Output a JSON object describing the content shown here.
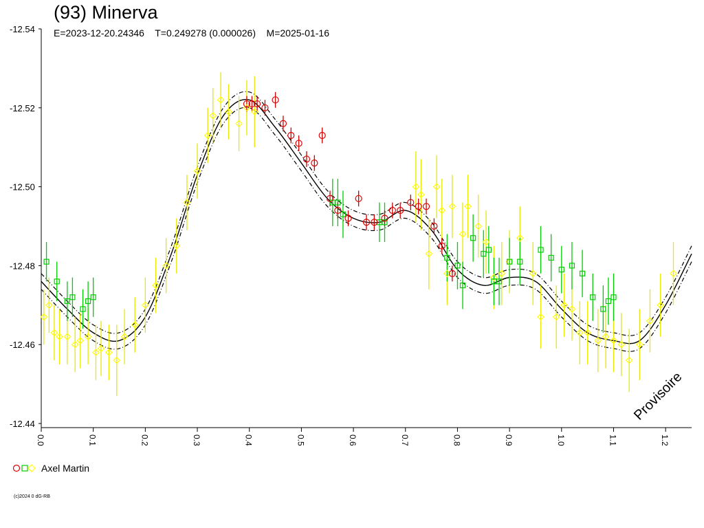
{
  "title": "(93) Minerva",
  "subtitle": "E=2023-12-20.24346    T=0.249278 (0.000026)    M=2025-01-16",
  "watermark": "Provisoire",
  "copyright": "(c)2024 0 dG-RB",
  "legend": {
    "label": "Axel Martin"
  },
  "chart_data": {
    "type": "scatter",
    "xlim": [
      0,
      1.25
    ],
    "ylim": [
      -12.54,
      -12.44
    ],
    "y_inverted": true,
    "x_ticks": [
      "0.0",
      "0.1",
      "0.2",
      "0.3",
      "0.4",
      "0.5",
      "0.6",
      "0.7",
      "0.8",
      "0.9",
      "1.0",
      "1.1",
      "1.2"
    ],
    "y_ticks": [
      "-12.54",
      "-12.52",
      "-12.50",
      "-12.48",
      "-12.46",
      "-12.44"
    ],
    "fit_curve": {
      "x": [
        0,
        0.05,
        0.1,
        0.15,
        0.2,
        0.25,
        0.3,
        0.35,
        0.4,
        0.45,
        0.5,
        0.55,
        0.6,
        0.65,
        0.7,
        0.75,
        0.8,
        0.85,
        0.9,
        0.95,
        1.0,
        1.05,
        1.1,
        1.15,
        1.2,
        1.25
      ],
      "y": [
        -12.476,
        -12.469,
        -12.463,
        -12.461,
        -12.467,
        -12.483,
        -12.503,
        -12.518,
        -12.522,
        -12.515,
        -12.506,
        -12.497,
        -12.492,
        -12.491,
        -12.494,
        -12.489,
        -12.479,
        -12.475,
        -12.477,
        -12.476,
        -12.469,
        -12.463,
        -12.461,
        -12.461,
        -12.47,
        -12.483
      ],
      "band": 0.002,
      "color": "#000000"
    },
    "series": [
      {
        "marker": "circle",
        "color": "#e00000",
        "errbar_color": "#cc0000",
        "x": [
          0.395,
          0.405,
          0.415,
          0.43,
          0.45,
          0.465,
          0.48,
          0.495,
          0.51,
          0.525,
          0.54,
          0.555,
          0.57,
          0.59,
          0.61,
          0.625,
          0.64,
          0.66,
          0.675,
          0.69,
          0.71,
          0.725,
          0.74,
          0.755,
          0.77,
          0.79
        ],
        "y": [
          -12.521,
          -12.521,
          -12.521,
          -12.52,
          -12.522,
          -12.516,
          -12.513,
          -12.511,
          -12.507,
          -12.506,
          -12.513,
          -12.497,
          -12.494,
          -12.492,
          -12.497,
          -12.491,
          -12.491,
          -12.492,
          -12.494,
          -12.494,
          -12.496,
          -12.495,
          -12.495,
          -12.49,
          -12.485,
          -12.478
        ],
        "err": [
          0.002,
          0.002,
          0.002,
          0.002,
          0.002,
          0.002,
          0.002,
          0.002,
          0.002,
          0.002,
          0.002,
          0.002,
          0.002,
          0.002,
          0.002,
          0.002,
          0.002,
          0.002,
          0.002,
          0.002,
          0.002,
          0.002,
          0.002,
          0.002,
          0.002,
          0.002
        ]
      },
      {
        "marker": "square",
        "color": "#00cc00",
        "errbar_color": "#00cc00",
        "x": [
          0.01,
          0.03,
          0.05,
          0.06,
          0.08,
          0.09,
          0.1,
          0.56,
          0.57,
          0.58,
          0.65,
          0.66,
          0.78,
          0.8,
          0.81,
          0.83,
          0.85,
          0.86,
          0.87,
          0.88,
          0.9,
          0.92,
          0.96,
          0.98,
          1.0,
          1.02,
          1.04,
          1.06,
          1.08,
          1.09,
          1.1
        ],
        "y": [
          -12.481,
          -12.476,
          -12.471,
          -12.472,
          -12.469,
          -12.471,
          -12.472,
          -12.496,
          -12.496,
          -12.493,
          -12.491,
          -12.491,
          -12.482,
          -12.48,
          -12.475,
          -12.487,
          -12.483,
          -12.484,
          -12.476,
          -12.476,
          -12.481,
          -12.481,
          -12.484,
          -12.482,
          -12.479,
          -12.48,
          -12.478,
          -12.472,
          -12.469,
          -12.471,
          -12.472
        ],
        "err": [
          0.005,
          0.005,
          0.005,
          0.005,
          0.005,
          0.005,
          0.005,
          0.006,
          0.006,
          0.006,
          0.005,
          0.005,
          0.006,
          0.006,
          0.006,
          0.006,
          0.006,
          0.006,
          0.006,
          0.006,
          0.006,
          0.006,
          0.006,
          0.006,
          0.006,
          0.006,
          0.006,
          0.006,
          0.006,
          0.006,
          0.006
        ]
      },
      {
        "marker": "diamond",
        "color": "#ffff00",
        "errbar_color": "#e8e800",
        "x": [
          0.005,
          0.015,
          0.025,
          0.035,
          0.05,
          0.065,
          0.075,
          0.09,
          0.105,
          0.115,
          0.13,
          0.145,
          0.16,
          0.18,
          0.2,
          0.22,
          0.24,
          0.26,
          0.28,
          0.3,
          0.32,
          0.33,
          0.345,
          0.36,
          0.38,
          0.395,
          0.41,
          0.72,
          0.73,
          0.745,
          0.76,
          0.77,
          0.78,
          0.79,
          0.81,
          0.82,
          0.84,
          0.855,
          0.87,
          0.885,
          0.9,
          0.92,
          0.945,
          0.96,
          0.99,
          1.005,
          1.02,
          1.035,
          1.05,
          1.07,
          1.085,
          1.1,
          1.115,
          1.13,
          1.15,
          1.17,
          1.19,
          1.215
        ],
        "y": [
          -12.467,
          -12.47,
          -12.463,
          -12.462,
          -12.462,
          -12.46,
          -12.461,
          -12.462,
          -12.458,
          -12.459,
          -12.458,
          -12.456,
          -12.462,
          -12.465,
          -12.47,
          -12.475,
          -12.48,
          -12.485,
          -12.496,
          -12.504,
          -12.513,
          -12.518,
          -12.522,
          -12.519,
          -12.516,
          -12.52,
          -12.519,
          -12.5,
          -12.498,
          -12.483,
          -12.5,
          -12.494,
          -12.478,
          -12.495,
          -12.488,
          -12.495,
          -12.49,
          -12.486,
          -12.477,
          -12.478,
          -12.481,
          -12.487,
          -12.478,
          -12.467,
          -12.467,
          -12.47,
          -12.469,
          -12.463,
          -12.463,
          -12.461,
          -12.462,
          -12.461,
          -12.46,
          -12.456,
          -12.46,
          -12.466,
          -12.47,
          -12.478
        ],
        "err": [
          0.007,
          0.007,
          0.007,
          0.007,
          0.007,
          0.007,
          0.007,
          0.007,
          0.007,
          0.007,
          0.007,
          0.009,
          0.007,
          0.007,
          0.007,
          0.007,
          0.007,
          0.007,
          0.007,
          0.007,
          0.007,
          0.007,
          0.007,
          0.007,
          0.007,
          0.007,
          0.009,
          0.009,
          0.009,
          0.009,
          0.008,
          0.008,
          0.008,
          0.008,
          0.008,
          0.008,
          0.008,
          0.008,
          0.008,
          0.008,
          0.008,
          0.008,
          0.008,
          0.008,
          0.008,
          0.008,
          0.008,
          0.008,
          0.008,
          0.008,
          0.008,
          0.008,
          0.008,
          0.008,
          0.009,
          0.008,
          0.008,
          0.008
        ]
      }
    ]
  }
}
